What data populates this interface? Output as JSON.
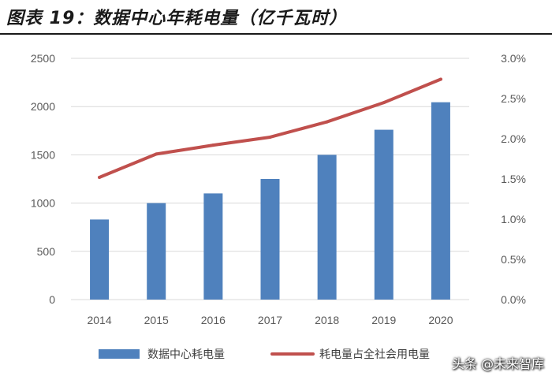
{
  "title": "图表 19：数据中心年耗电量（亿千瓦时）",
  "watermark": "头条 @未来智库",
  "colors": {
    "bar": "#4f81bd",
    "line": "#c0504d",
    "axis": "#d9d9d9",
    "text": "#595959"
  },
  "chart_data": {
    "type": "bar",
    "categories": [
      "2014",
      "2015",
      "2016",
      "2017",
      "2018",
      "2019",
      "2020"
    ],
    "series": [
      {
        "name": "数据中心耗电量",
        "type": "bar",
        "axis": "left",
        "values": [
          830,
          1000,
          1100,
          1250,
          1500,
          1760,
          2045
        ]
      },
      {
        "name": "耗电量占全社会用电量",
        "type": "line",
        "axis": "right",
        "values": [
          1.52,
          1.81,
          1.92,
          2.02,
          2.21,
          2.45,
          2.74
        ]
      }
    ],
    "ylim": [
      0,
      2500
    ],
    "yticks": [
      "0",
      "500",
      "1000",
      "1500",
      "2000",
      "2500"
    ],
    "y2lim": [
      0,
      3.0
    ],
    "y2ticks": [
      "0.0%",
      "0.5%",
      "1.0%",
      "1.5%",
      "2.0%",
      "2.5%",
      "3.0%"
    ],
    "grid": true,
    "legend_position": "bottom"
  }
}
